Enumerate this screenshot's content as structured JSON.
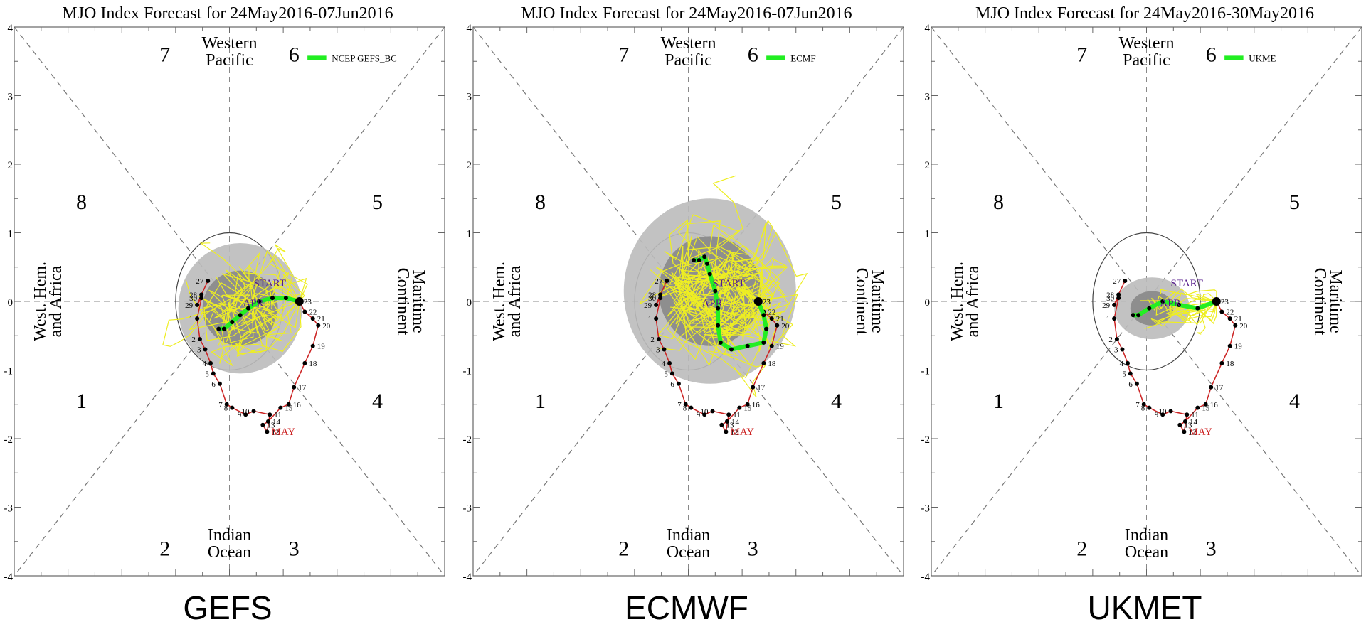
{
  "chart_data": [
    {
      "type": "scatter",
      "title": "MJO Index Forecast for 24May2016-07Jun2016",
      "caption": "GEFS",
      "legend": "NCEP GEFS_BC",
      "xlim": [
        -4,
        4
      ],
      "ylim": [
        -4,
        4
      ],
      "yticks": [
        "-4",
        "-3",
        "-2",
        "-1",
        "0",
        "1",
        "2",
        "3",
        "4"
      ],
      "phases": [
        "1",
        "2",
        "3",
        "4",
        "5",
        "6",
        "7",
        "8"
      ],
      "regions": {
        "top": [
          "Western",
          "Pacific"
        ],
        "bottom": [
          "Indian",
          "Ocean"
        ],
        "left": [
          "West. Hem.",
          "and Africa"
        ],
        "right": [
          "Maritime",
          "Continent"
        ]
      },
      "markers": {
        "start": "START",
        "apr": "APR",
        "may": "MAY"
      },
      "observed": {
        "days": [
          "27",
          "28",
          "29",
          "30",
          "1",
          "2",
          "3",
          "4",
          "5",
          "6",
          "7",
          "8",
          "9",
          "10",
          "11",
          "12",
          "13",
          "14",
          "15",
          "16",
          "17",
          "18",
          "19",
          "20",
          "21",
          "22",
          "23"
        ],
        "x": [
          -0.4,
          -0.52,
          -0.6,
          -0.52,
          -0.6,
          -0.55,
          -0.45,
          -0.35,
          -0.3,
          -0.18,
          -0.05,
          0.05,
          0.3,
          0.45,
          0.75,
          0.7,
          0.62,
          0.72,
          0.95,
          1.1,
          1.2,
          1.4,
          1.55,
          1.65,
          1.55,
          1.4,
          1.3
        ],
        "y": [
          0.3,
          0.1,
          -0.05,
          0.05,
          -0.25,
          -0.55,
          -0.7,
          -0.9,
          -1.05,
          -1.2,
          -1.5,
          -1.55,
          -1.65,
          -1.6,
          -1.65,
          -1.9,
          -1.8,
          -1.75,
          -1.55,
          -1.5,
          -1.25,
          -0.9,
          -0.65,
          -0.35,
          -0.25,
          -0.15,
          0.0
        ]
      },
      "forecast": {
        "x": [
          1.3,
          1.05,
          0.8,
          0.55,
          0.35,
          0.2,
          0.05,
          -0.1,
          -0.2
        ],
        "y": [
          0.0,
          0.05,
          0.05,
          0.0,
          -0.1,
          -0.2,
          -0.3,
          -0.4,
          -0.4
        ]
      },
      "spread": {
        "center": [
          0.2,
          -0.1
        ],
        "outer_rx": 1.15,
        "outer_ry": 0.95,
        "inner_rx": 0.7,
        "inner_ry": 0.55
      }
    },
    {
      "type": "scatter",
      "title": "MJO Index Forecast for 24May2016-07Jun2016",
      "caption": "ECMWF",
      "legend": "ECMF",
      "xlim": [
        -4,
        4
      ],
      "ylim": [
        -4,
        4
      ],
      "yticks": [
        "-4",
        "-3",
        "-2",
        "-1",
        "0",
        "1",
        "2",
        "3",
        "4"
      ],
      "phases": [
        "1",
        "2",
        "3",
        "4",
        "5",
        "6",
        "7",
        "8"
      ],
      "regions": {
        "top": [
          "Western",
          "Pacific"
        ],
        "bottom": [
          "Indian",
          "Ocean"
        ],
        "left": [
          "West. Hem.",
          "and Africa"
        ],
        "right": [
          "Maritime",
          "Continent"
        ]
      },
      "markers": {
        "start": "START",
        "apr": "APR",
        "may": "MAY"
      },
      "observed": {
        "days": [
          "27",
          "28",
          "29",
          "30",
          "1",
          "2",
          "3",
          "4",
          "5",
          "6",
          "7",
          "8",
          "9",
          "10",
          "11",
          "12",
          "13",
          "14",
          "15",
          "16",
          "17",
          "18",
          "19",
          "20",
          "21",
          "22",
          "23"
        ],
        "x": [
          -0.4,
          -0.52,
          -0.6,
          -0.52,
          -0.6,
          -0.55,
          -0.45,
          -0.35,
          -0.3,
          -0.18,
          -0.05,
          0.05,
          0.3,
          0.45,
          0.75,
          0.7,
          0.62,
          0.72,
          0.95,
          1.1,
          1.2,
          1.4,
          1.55,
          1.65,
          1.55,
          1.4,
          1.3
        ],
        "y": [
          0.3,
          0.1,
          -0.05,
          0.05,
          -0.25,
          -0.55,
          -0.7,
          -0.9,
          -1.05,
          -1.2,
          -1.5,
          -1.55,
          -1.65,
          -1.6,
          -1.65,
          -1.9,
          -1.8,
          -1.75,
          -1.55,
          -1.5,
          -1.25,
          -0.9,
          -0.65,
          -0.35,
          -0.25,
          -0.15,
          0.0
        ]
      },
      "forecast": {
        "x": [
          1.3,
          1.4,
          1.45,
          1.4,
          1.1,
          0.8,
          0.6,
          0.55,
          0.55,
          0.5,
          0.4,
          0.35,
          0.3,
          0.2,
          0.1
        ],
        "y": [
          0.0,
          -0.2,
          -0.4,
          -0.6,
          -0.65,
          -0.7,
          -0.6,
          -0.35,
          -0.1,
          0.15,
          0.4,
          0.55,
          0.65,
          0.6,
          0.6
        ]
      },
      "spread": {
        "center": [
          0.4,
          0.15
        ],
        "outer_rx": 1.6,
        "outer_ry": 1.35,
        "inner_rx": 0.95,
        "inner_ry": 0.8
      }
    },
    {
      "type": "scatter",
      "title": "MJO Index Forecast for 24May2016-30May2016",
      "caption": "UKMET",
      "legend": "UKME",
      "xlim": [
        -4,
        4
      ],
      "ylim": [
        -4,
        4
      ],
      "yticks": [
        "-4",
        "-3",
        "-2",
        "-1",
        "0",
        "1",
        "2",
        "3",
        "4"
      ],
      "phases": [
        "1",
        "2",
        "3",
        "4",
        "5",
        "6",
        "7",
        "8"
      ],
      "regions": {
        "top": [
          "Western",
          "Pacific"
        ],
        "bottom": [
          "Indian",
          "Ocean"
        ],
        "left": [
          "West. Hem.",
          "and Africa"
        ],
        "right": [
          "Maritime",
          "Continent"
        ]
      },
      "markers": {
        "start": "START",
        "apr": "APR",
        "may": "MAY"
      },
      "observed": {
        "days": [
          "27",
          "28",
          "29",
          "30",
          "1",
          "2",
          "3",
          "4",
          "5",
          "6",
          "7",
          "8",
          "9",
          "10",
          "11",
          "12",
          "13",
          "14",
          "15",
          "16",
          "17",
          "18",
          "19",
          "20",
          "21",
          "22",
          "23"
        ],
        "x": [
          -0.4,
          -0.52,
          -0.6,
          -0.52,
          -0.6,
          -0.55,
          -0.45,
          -0.35,
          -0.3,
          -0.18,
          -0.05,
          0.05,
          0.3,
          0.45,
          0.75,
          0.7,
          0.62,
          0.72,
          0.95,
          1.1,
          1.2,
          1.4,
          1.55,
          1.65,
          1.55,
          1.4,
          1.3
        ],
        "y": [
          0.3,
          0.1,
          -0.05,
          0.05,
          -0.25,
          -0.55,
          -0.7,
          -0.9,
          -1.05,
          -1.2,
          -1.5,
          -1.55,
          -1.65,
          -1.6,
          -1.65,
          -1.9,
          -1.8,
          -1.75,
          -1.55,
          -1.5,
          -1.25,
          -0.9,
          -0.65,
          -0.35,
          -0.25,
          -0.15,
          0.0
        ]
      },
      "forecast": {
        "x": [
          1.3,
          0.95,
          0.6,
          0.3,
          0.05,
          -0.15,
          -0.25
        ],
        "y": [
          0.0,
          -0.1,
          -0.05,
          0.0,
          -0.1,
          -0.2,
          -0.2
        ]
      },
      "spread": {
        "center": [
          0.1,
          -0.1
        ],
        "outer_rx": 0.7,
        "outer_ry": 0.45,
        "inner_rx": 0.4,
        "inner_ry": 0.25
      }
    }
  ],
  "colors": {
    "forecast": "#22ee22",
    "ensemble": "#eeee22",
    "observed": "#cc2222",
    "spread_outer": "#bbbbbb",
    "spread_inner": "#888888",
    "label_purple": "#551a8b",
    "label_red": "#cc2222"
  }
}
